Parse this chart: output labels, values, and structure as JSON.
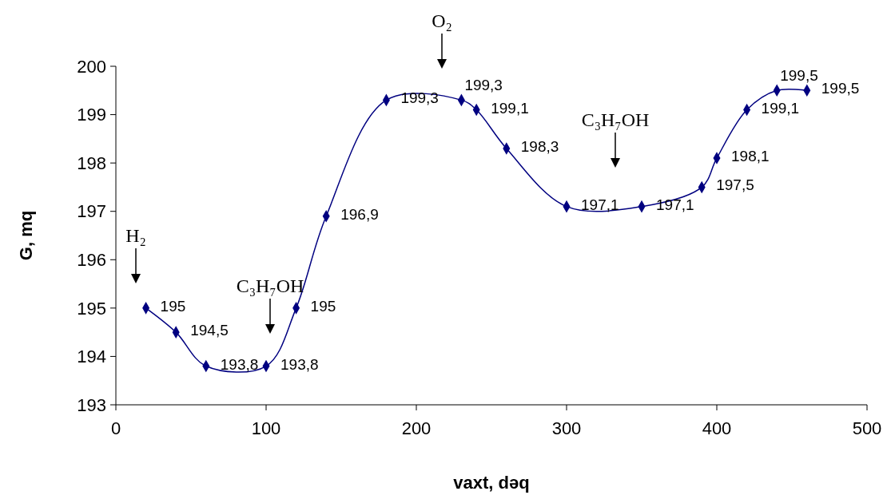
{
  "chart_data": {
    "type": "line",
    "xlabel": "vaxt, dəq",
    "ylabel": "G, mq",
    "x": [
      20,
      40,
      60,
      100,
      120,
      140,
      180,
      230,
      240,
      260,
      300,
      350,
      390,
      400,
      420,
      440,
      460
    ],
    "series": [
      {
        "color": "#000080",
        "values": [
          195,
          194.5,
          193.8,
          193.8,
          195,
          196.9,
          199.3,
          199.3,
          199.1,
          198.3,
          197.1,
          197.1,
          197.5,
          198.1,
          199.1,
          199.5,
          199.5
        ],
        "value_labels": [
          "195",
          "194,5",
          "193,8",
          "193,8",
          "195",
          "196,9",
          "199,3",
          "199,3",
          "199,1",
          "198,3",
          "197,1",
          "197,1",
          "197,5",
          "198,1",
          "199,1",
          "199,5",
          "199,5"
        ]
      }
    ],
    "xlim": [
      0,
      500
    ],
    "xticks": [
      0,
      100,
      200,
      300,
      400,
      500
    ],
    "ylim": [
      193,
      200
    ],
    "yticks": [
      193,
      194,
      195,
      196,
      197,
      198,
      199,
      200
    ],
    "marker": "diamond",
    "grid": false,
    "annotations": [
      "H₂",
      "C₃H₇OH",
      "O₂",
      "C₃H₇OH"
    ]
  }
}
